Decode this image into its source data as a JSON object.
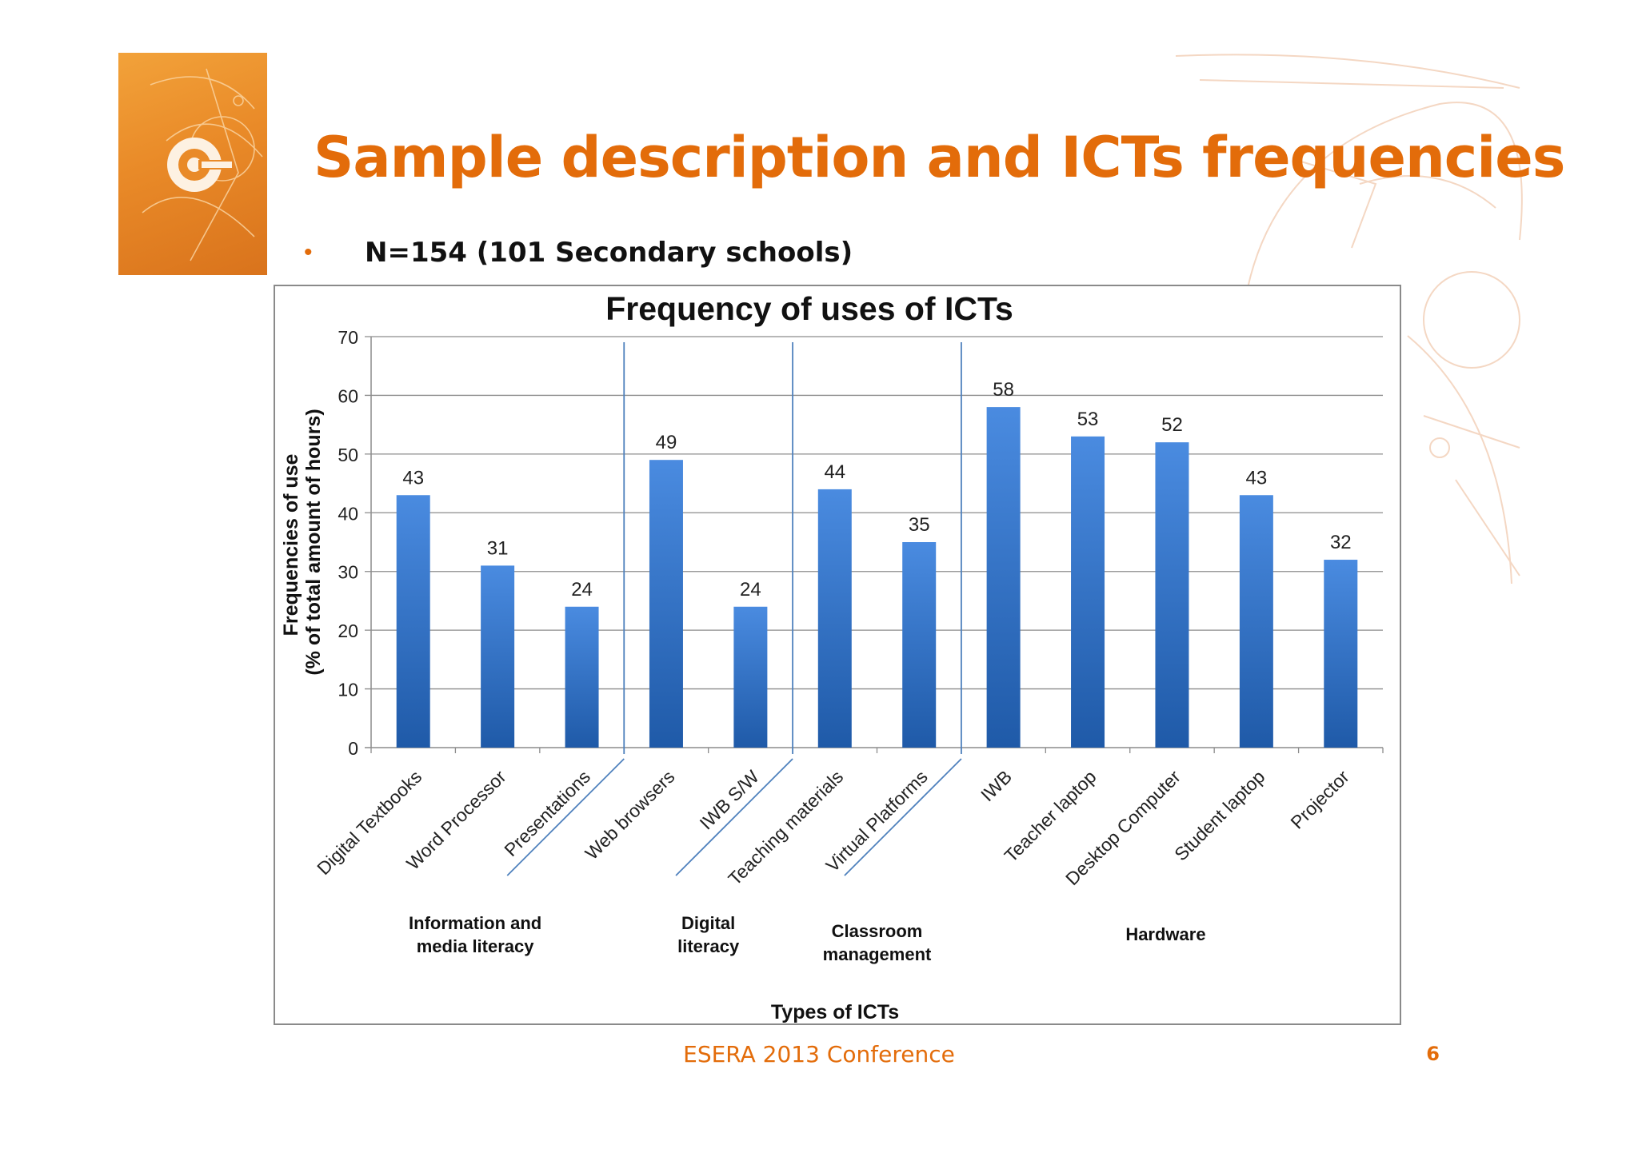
{
  "slide": {
    "title": "Sample description and ICTs frequencies",
    "bullet": "N=154 (101 Secondary schools)",
    "footer": "ESERA 2013 Conference",
    "page_number": "6"
  },
  "colors": {
    "accent": "#e36c0a",
    "bar_top": "#4a8be0",
    "bar_bottom": "#1f5aa8",
    "divider": "#4f81bd",
    "gridline": "#8c8c8c"
  },
  "chart_data": {
    "type": "bar",
    "title": "Frequency of uses of ICTs",
    "xlabel": "Types of ICTs",
    "ylabel_line1": "Frequencies of use",
    "ylabel_line2": "(% of total amount of hours)",
    "ylim": [
      0,
      70
    ],
    "yticks": [
      0,
      10,
      20,
      30,
      40,
      50,
      60,
      70
    ],
    "grid": true,
    "categories": [
      "Digital Textbooks",
      "Word Processor",
      "Presentations",
      "Web browsers",
      "IWB S/W",
      "Teaching materials",
      "Virtual Platforms",
      "IWB",
      "Teacher laptop",
      "Desktop Computer",
      "Student laptop",
      "Projector"
    ],
    "values": [
      43,
      31,
      24,
      49,
      24,
      44,
      35,
      58,
      53,
      52,
      43,
      32
    ],
    "data_labels": [
      "43",
      "31",
      "24",
      "49",
      "24",
      "44",
      "35",
      "58",
      "53",
      "52",
      "43",
      "32"
    ],
    "groups": [
      {
        "name_line1": "Information  and",
        "name_line2": "media literacy",
        "start": 0,
        "end": 2
      },
      {
        "name_line1": "Digital",
        "name_line2": "literacy",
        "start": 3,
        "end": 4
      },
      {
        "name_line1": "Classroom",
        "name_line2": "management",
        "start": 5,
        "end": 6
      },
      {
        "name_line1": "Hardware",
        "name_line2": "",
        "start": 7,
        "end": 11
      }
    ]
  }
}
